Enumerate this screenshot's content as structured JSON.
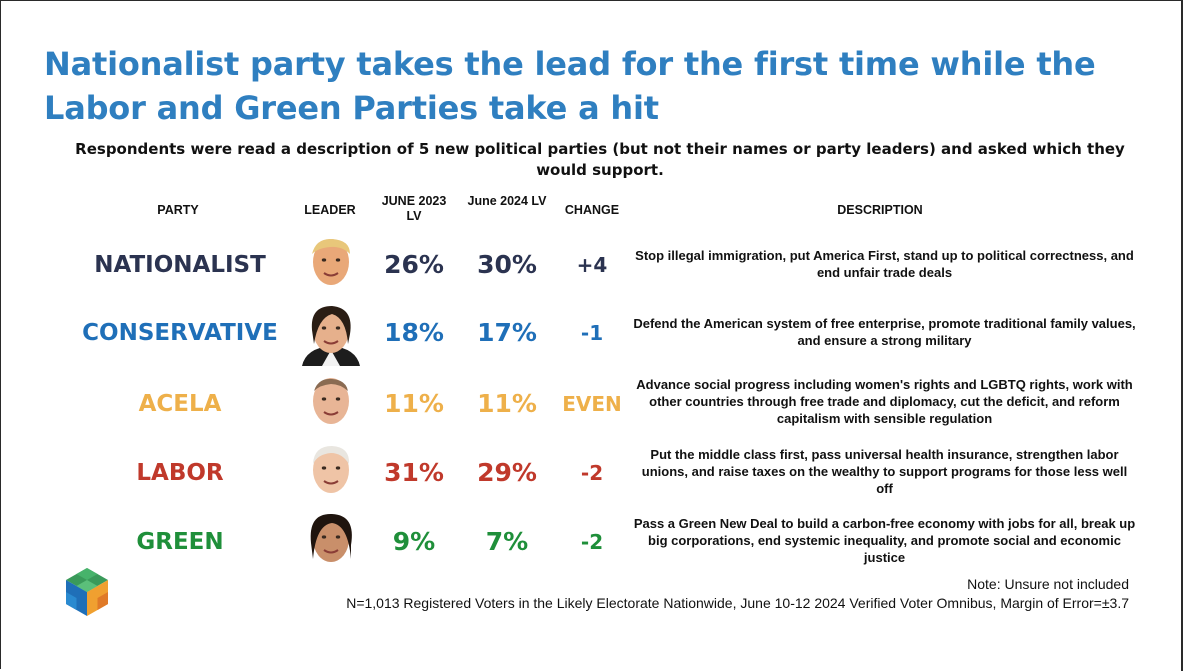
{
  "title": "Nationalist party takes the lead for the first time while the Labor and Green Parties take a hit",
  "subtitle": "Respondents were read a description of 5 new political parties (but not their names or party leaders) and asked which they would support.",
  "headers": {
    "party": "PARTY",
    "leader": "LEADER",
    "june2023": "JUNE 2023 LV",
    "june2024": "June 2024 LV",
    "change": "CHANGE",
    "description": "DESCRIPTION"
  },
  "colors": {
    "title": "#2f7fc0",
    "nationalist": "#2b3350",
    "conservative": "#1f6fb8",
    "acela": "#eeb04a",
    "labor": "#c0392b",
    "green": "#1f8f3a"
  },
  "chart_data": {
    "type": "table",
    "columns": [
      "PARTY",
      "LEADER",
      "JUNE 2023 LV",
      "June 2024 LV",
      "CHANGE",
      "DESCRIPTION"
    ],
    "rows": [
      {
        "party": "NATIONALIST",
        "leader_icon": "leader-portrait-icon",
        "june2023": "26%",
        "june2024": "30%",
        "change": "+4",
        "description": "Stop illegal immigration, put America First, stand up to political correctness, and end unfair trade deals",
        "color": "#2b3350"
      },
      {
        "party": "CONSERVATIVE",
        "leader_icon": "leader-portrait-icon",
        "june2023": "18%",
        "june2024": "17%",
        "change": "-1",
        "description": "Defend the American system of free enterprise, promote traditional family values, and ensure a strong military",
        "color": "#1f6fb8"
      },
      {
        "party": "ACELA",
        "leader_icon": "leader-portrait-icon",
        "june2023": "11%",
        "june2024": "11%",
        "change": "EVEN",
        "description": "Advance social progress including women's rights and LGBTQ rights, work with other countries through free trade and diplomacy, cut the deficit, and reform capitalism with sensible regulation",
        "color": "#eeb04a"
      },
      {
        "party": "LABOR",
        "leader_icon": "leader-portrait-icon",
        "june2023": "31%",
        "june2024": "29%",
        "change": "-2",
        "description": "Put the middle class first, pass universal health insurance, strengthen labor unions, and raise taxes on the wealthy to support programs for those less well off",
        "color": "#c0392b"
      },
      {
        "party": "GREEN",
        "leader_icon": "leader-portrait-icon",
        "june2023": "9%",
        "june2024": "7%",
        "change": "-2",
        "description": "Pass a Green New Deal to build a carbon-free economy with jobs for all, break up big corporations, end systemic inequality, and promote social and economic justice",
        "color": "#1f8f3a"
      }
    ]
  },
  "note": "Note: Unsure not included",
  "footnote": "N=1,013 Registered Voters in the Likely Electorate Nationwide, June 10-12 2024 Verified Voter Omnibus, Margin of Error=±3.7"
}
